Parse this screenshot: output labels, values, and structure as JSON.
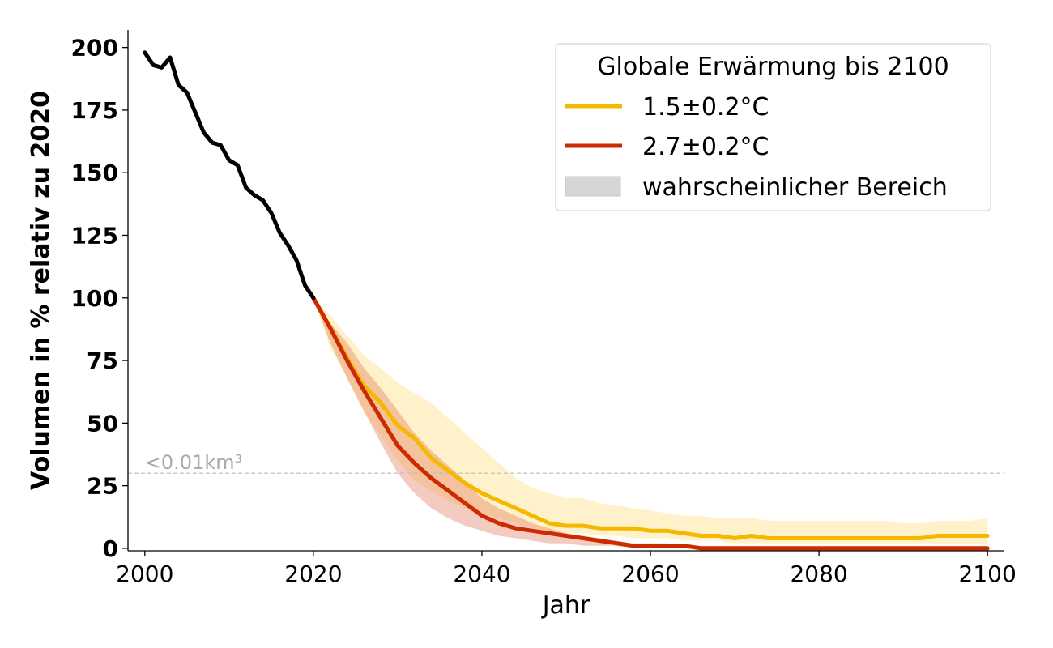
{
  "chart_data": {
    "type": "line",
    "xlabel": "Jahr",
    "ylabel": "Volumen in % relativ zu 2020",
    "xlim": [
      1998,
      2102
    ],
    "ylim": [
      -1,
      207
    ],
    "xticks": [
      2000,
      2020,
      2040,
      2060,
      2080,
      2100
    ],
    "yticks": [
      0,
      25,
      50,
      75,
      100,
      125,
      150,
      175,
      200
    ],
    "grid": false,
    "legend": {
      "title": "Globale Erwärmung bis 2100",
      "placement": "top-right",
      "entries": [
        "1.5±0.2°C",
        "2.7±0.2°C",
        "wahrscheinlicher Bereich"
      ]
    },
    "threshold": {
      "y": 30,
      "label": "<0.01km³",
      "color": "#bbbbbb"
    },
    "historical": {
      "color": "#000000",
      "x": [
        2000,
        2001,
        2002,
        2003,
        2004,
        2005,
        2006,
        2007,
        2008,
        2009,
        2010,
        2011,
        2012,
        2013,
        2014,
        2015,
        2016,
        2017,
        2018,
        2019,
        2020
      ],
      "y": [
        198,
        193,
        192,
        196,
        185,
        182,
        174,
        166,
        162,
        161,
        155,
        153,
        144,
        141,
        139,
        134,
        126,
        121,
        115,
        105,
        100
      ]
    },
    "series": [
      {
        "name": "1.5±0.2°C",
        "color": "#f5b800",
        "band_color": "#ffd966",
        "x": [
          2020,
          2022,
          2024,
          2026,
          2028,
          2030,
          2032,
          2034,
          2036,
          2038,
          2040,
          2042,
          2044,
          2046,
          2048,
          2050,
          2052,
          2054,
          2056,
          2058,
          2060,
          2062,
          2064,
          2066,
          2068,
          2070,
          2072,
          2074,
          2076,
          2078,
          2080,
          2082,
          2084,
          2086,
          2088,
          2090,
          2092,
          2094,
          2096,
          2098,
          2100
        ],
        "y": [
          100,
          88,
          76,
          65,
          58,
          49,
          44,
          36,
          31,
          26,
          22,
          19,
          16,
          13,
          10,
          9,
          9,
          8,
          8,
          8,
          7,
          7,
          6,
          5,
          5,
          4,
          5,
          4,
          4,
          4,
          4,
          4,
          4,
          4,
          4,
          4,
          4,
          5,
          5,
          5,
          5
        ],
        "low": [
          100,
          80,
          68,
          54,
          45,
          35,
          27,
          23,
          19,
          16,
          14,
          12,
          10,
          8,
          7,
          6,
          6,
          5,
          5,
          4,
          4,
          4,
          3,
          3,
          3,
          2,
          2,
          2,
          2,
          2,
          2,
          2,
          2,
          2,
          2,
          2,
          2,
          2,
          2,
          2,
          2
        ],
        "high": [
          100,
          93,
          85,
          77,
          72,
          66,
          62,
          58,
          52,
          46,
          40,
          34,
          28,
          24,
          22,
          20,
          20,
          18,
          17,
          16,
          15,
          14,
          13,
          13,
          12,
          12,
          12,
          11,
          11,
          11,
          11,
          11,
          11,
          11,
          11,
          10,
          10,
          11,
          11,
          11,
          12
        ]
      },
      {
        "name": "2.7±0.2°C",
        "color": "#cc2a00",
        "band_color": "#e06a4a",
        "x": [
          2020,
          2022,
          2024,
          2026,
          2028,
          2030,
          2032,
          2034,
          2036,
          2038,
          2040,
          2042,
          2044,
          2046,
          2048,
          2050,
          2052,
          2054,
          2056,
          2058,
          2060,
          2062,
          2064,
          2066,
          2068,
          2070,
          2075,
          2080,
          2085,
          2090,
          2095,
          2100
        ],
        "y": [
          100,
          88,
          75,
          63,
          52,
          41,
          34,
          28,
          23,
          18,
          13,
          10,
          8,
          7,
          6,
          5,
          4,
          3,
          2,
          1,
          1,
          1,
          1,
          0,
          0,
          0,
          0,
          0,
          0,
          0,
          0,
          0
        ],
        "low": [
          100,
          82,
          68,
          55,
          42,
          30,
          22,
          16,
          12,
          9,
          7,
          5,
          4,
          3,
          2,
          2,
          1,
          1,
          1,
          0,
          0,
          0,
          0,
          0,
          0,
          0,
          0,
          0,
          0,
          0,
          0,
          0
        ],
        "high": [
          100,
          90,
          82,
          72,
          64,
          55,
          46,
          39,
          33,
          27,
          20,
          16,
          13,
          10,
          8,
          6,
          5,
          4,
          3,
          2,
          2,
          2,
          1,
          1,
          1,
          1,
          1,
          1,
          1,
          1,
          1,
          1
        ]
      }
    ]
  }
}
